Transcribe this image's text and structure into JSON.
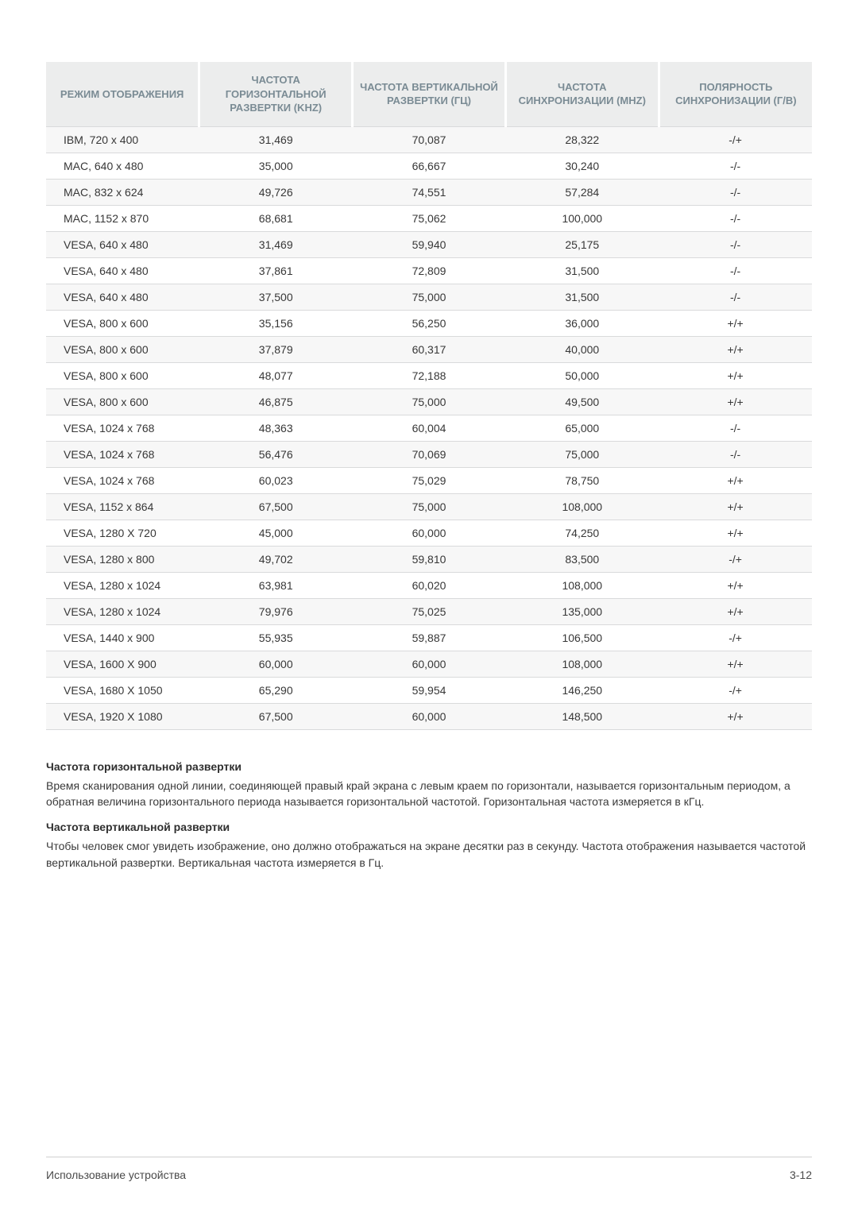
{
  "table": {
    "header_color": "#7a8b94",
    "header_bg": "#eceded",
    "row_odd_bg": "#f7f7f7",
    "row_even_bg": "#ffffff",
    "border_color": "#d9dadb",
    "text_color": "#373737",
    "columns": [
      "РЕЖИМ ОТОБРАЖЕНИЯ",
      "ЧАСТОТА ГОРИЗОНТАЛЬНОЙ РАЗВЕРТКИ (KHZ)",
      "ЧАСТОТА ВЕРТИКАЛЬНОЙ РАЗВЕРТКИ (ГЦ)",
      "ЧАСТОТА СИНХРОНИЗАЦИИ (MHZ)",
      "ПОЛЯРНОСТЬ СИНХРОНИЗАЦИИ (Г/В)"
    ],
    "rows": [
      [
        "IBM, 720 x 400",
        "31,469",
        "70,087",
        "28,322",
        "-/+"
      ],
      [
        "MAC, 640 x 480",
        "35,000",
        "66,667",
        "30,240",
        "-/-"
      ],
      [
        "MAC, 832 x 624",
        "49,726",
        "74,551",
        "57,284",
        "-/-"
      ],
      [
        "MAC, 1152 x 870",
        "68,681",
        "75,062",
        "100,000",
        "-/-"
      ],
      [
        "VESA, 640 x 480",
        "31,469",
        "59,940",
        "25,175",
        "-/-"
      ],
      [
        "VESA, 640 x 480",
        "37,861",
        "72,809",
        "31,500",
        "-/-"
      ],
      [
        "VESA, 640 x 480",
        "37,500",
        "75,000",
        "31,500",
        "-/-"
      ],
      [
        "VESA, 800 x 600",
        "35,156",
        "56,250",
        "36,000",
        "+/+"
      ],
      [
        "VESA, 800 x 600",
        "37,879",
        "60,317",
        "40,000",
        "+/+"
      ],
      [
        "VESA, 800 x 600",
        "48,077",
        "72,188",
        "50,000",
        "+/+"
      ],
      [
        "VESA, 800 x 600",
        "46,875",
        "75,000",
        "49,500",
        "+/+"
      ],
      [
        "VESA, 1024 x 768",
        "48,363",
        "60,004",
        "65,000",
        "-/-"
      ],
      [
        "VESA, 1024 x 768",
        "56,476",
        "70,069",
        "75,000",
        "-/-"
      ],
      [
        "VESA, 1024 x 768",
        "60,023",
        "75,029",
        "78,750",
        "+/+"
      ],
      [
        "VESA, 1152 x 864",
        "67,500",
        "75,000",
        "108,000",
        "+/+"
      ],
      [
        "VESA, 1280 X 720",
        "45,000",
        "60,000",
        "74,250",
        "+/+"
      ],
      [
        "VESA, 1280 x 800",
        "49,702",
        "59,810",
        "83,500",
        "-/+"
      ],
      [
        "VESA, 1280 x 1024",
        "63,981",
        "60,020",
        "108,000",
        "+/+"
      ],
      [
        "VESA, 1280 x 1024",
        "79,976",
        "75,025",
        "135,000",
        "+/+"
      ],
      [
        "VESA, 1440 x 900",
        "55,935",
        "59,887",
        "106,500",
        "-/+"
      ],
      [
        "VESA, 1600 X 900",
        "60,000",
        "60,000",
        "108,000",
        "+/+"
      ],
      [
        "VESA, 1680 X 1050",
        "65,290",
        "59,954",
        "146,250",
        "-/+"
      ],
      [
        "VESA, 1920 X 1080",
        "67,500",
        "60,000",
        "148,500",
        "+/+"
      ]
    ]
  },
  "notes": {
    "h1": "Частота горизонтальной развертки",
    "p1": "Время сканирования одной линии, соединяющей правый край экрана с левым краем по горизонтали, называется горизонтальным периодом, а обратная величина горизонтального периода называется горизонтальной частотой. Горизонтальная частота измеряется в кГц.",
    "h2": "Частота вертикальной развертки",
    "p2": "Чтобы человек смог увидеть изображение, оно должно отображаться на экране десятки раз в секунду. Частота отображения называется частотой вертикальной развертки. Вертикальная частота измеряется в Гц."
  },
  "footer": {
    "left": "Использование устройства",
    "right": "3-12"
  }
}
